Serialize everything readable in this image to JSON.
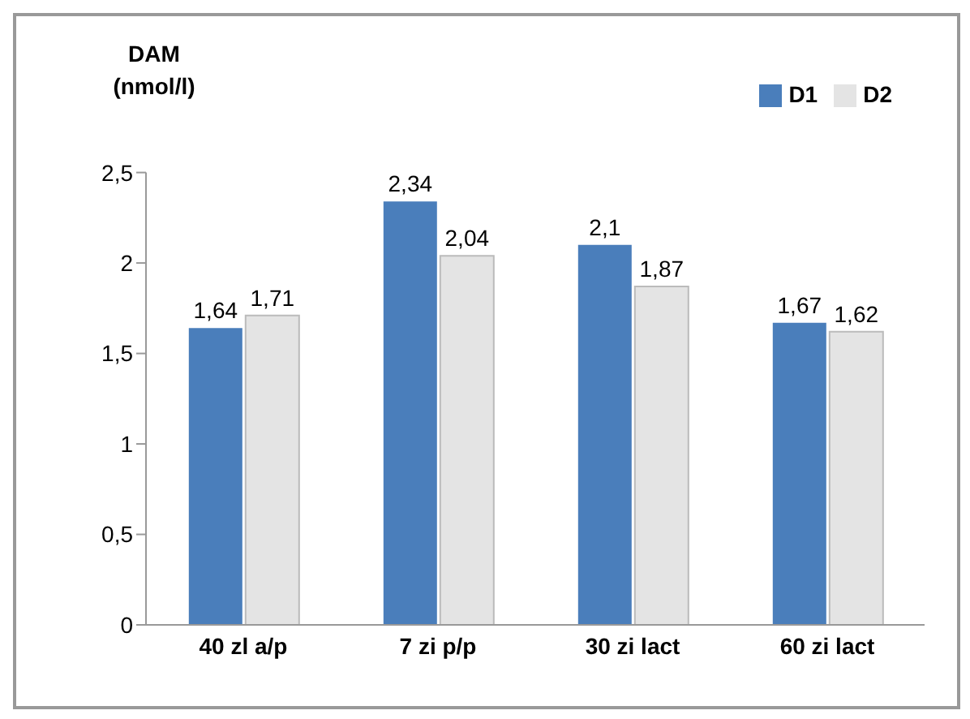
{
  "chart_data": {
    "type": "bar",
    "ylabel": "DAM (nmol/l)",
    "categories": [
      "40 zl a/p",
      "7 zi p/p",
      "30 zi lact",
      "60 zi lact"
    ],
    "series": [
      {
        "name": "D1",
        "color": "#4a7ebb",
        "values": [
          1.64,
          2.34,
          2.1,
          1.67
        ],
        "value_labels": [
          "1,64",
          "2,34",
          "2,1",
          "1,67"
        ]
      },
      {
        "name": "D2",
        "color": "#e4e4e4",
        "values": [
          1.71,
          2.04,
          1.87,
          1.62
        ],
        "value_labels": [
          "1,71",
          "2,04",
          "1,87",
          "1,62"
        ]
      }
    ],
    "ylim": [
      0,
      2.5
    ],
    "yticks": [
      0,
      {
        "value": 0.5,
        "label": "0,5"
      },
      1,
      {
        "value": 1.5,
        "label": "1,5"
      },
      2,
      {
        "value": 2.5,
        "label": "2,5"
      }
    ],
    "grid": false,
    "legend": "top right"
  }
}
